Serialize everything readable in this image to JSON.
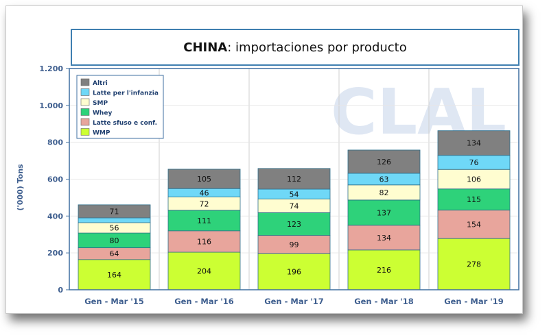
{
  "chart_data": {
    "type": "bar",
    "stacked": true,
    "title_bold": "CHINA",
    "title_rest": ": importaciones por producto",
    "ylabel": "('000) Tons",
    "ylim": [
      0,
      1200
    ],
    "yticks": [
      0,
      200,
      400,
      600,
      800,
      1000,
      1200
    ],
    "ytick_labels": [
      "0",
      "200",
      "400",
      "600",
      "800",
      "1.000",
      "1.200"
    ],
    "categories": [
      "Gen - Mar '15",
      "Gen - Mar '16",
      "Gen - Mar '17",
      "Gen - Mar '18",
      "Gen - Mar '19"
    ],
    "series": [
      {
        "name": "WMP",
        "color": "#ccff33",
        "values": [
          164,
          204,
          196,
          216,
          278
        ]
      },
      {
        "name": "Latte sfuso e conf.",
        "color": "#e8a59c",
        "values": [
          64,
          116,
          99,
          134,
          154
        ]
      },
      {
        "name": "Whey",
        "color": "#2ed27a",
        "values": [
          80,
          111,
          123,
          137,
          115
        ]
      },
      {
        "name": "SMP",
        "color": "#fffdd0",
        "values": [
          56,
          72,
          74,
          82,
          106
        ]
      },
      {
        "name": "Latte per l'infanzia",
        "color": "#6fd8f7",
        "values": [
          26,
          46,
          54,
          63,
          76
        ]
      },
      {
        "name": "Altri",
        "color": "#808080",
        "values": [
          71,
          105,
          112,
          126,
          134
        ]
      }
    ],
    "data_labels": [
      [
        "164",
        "64",
        "80",
        "56",
        "",
        "71"
      ],
      [
        "204",
        "116",
        "111",
        "72",
        "46",
        "105"
      ],
      [
        "196",
        "99",
        "123",
        "74",
        "54",
        "112"
      ],
      [
        "216",
        "134",
        "137",
        "82",
        "63",
        "126"
      ],
      [
        "278",
        "154",
        "115",
        "106",
        "76",
        "134"
      ]
    ],
    "legend_position": "top-left",
    "grid": true
  },
  "watermark": "CLAL"
}
